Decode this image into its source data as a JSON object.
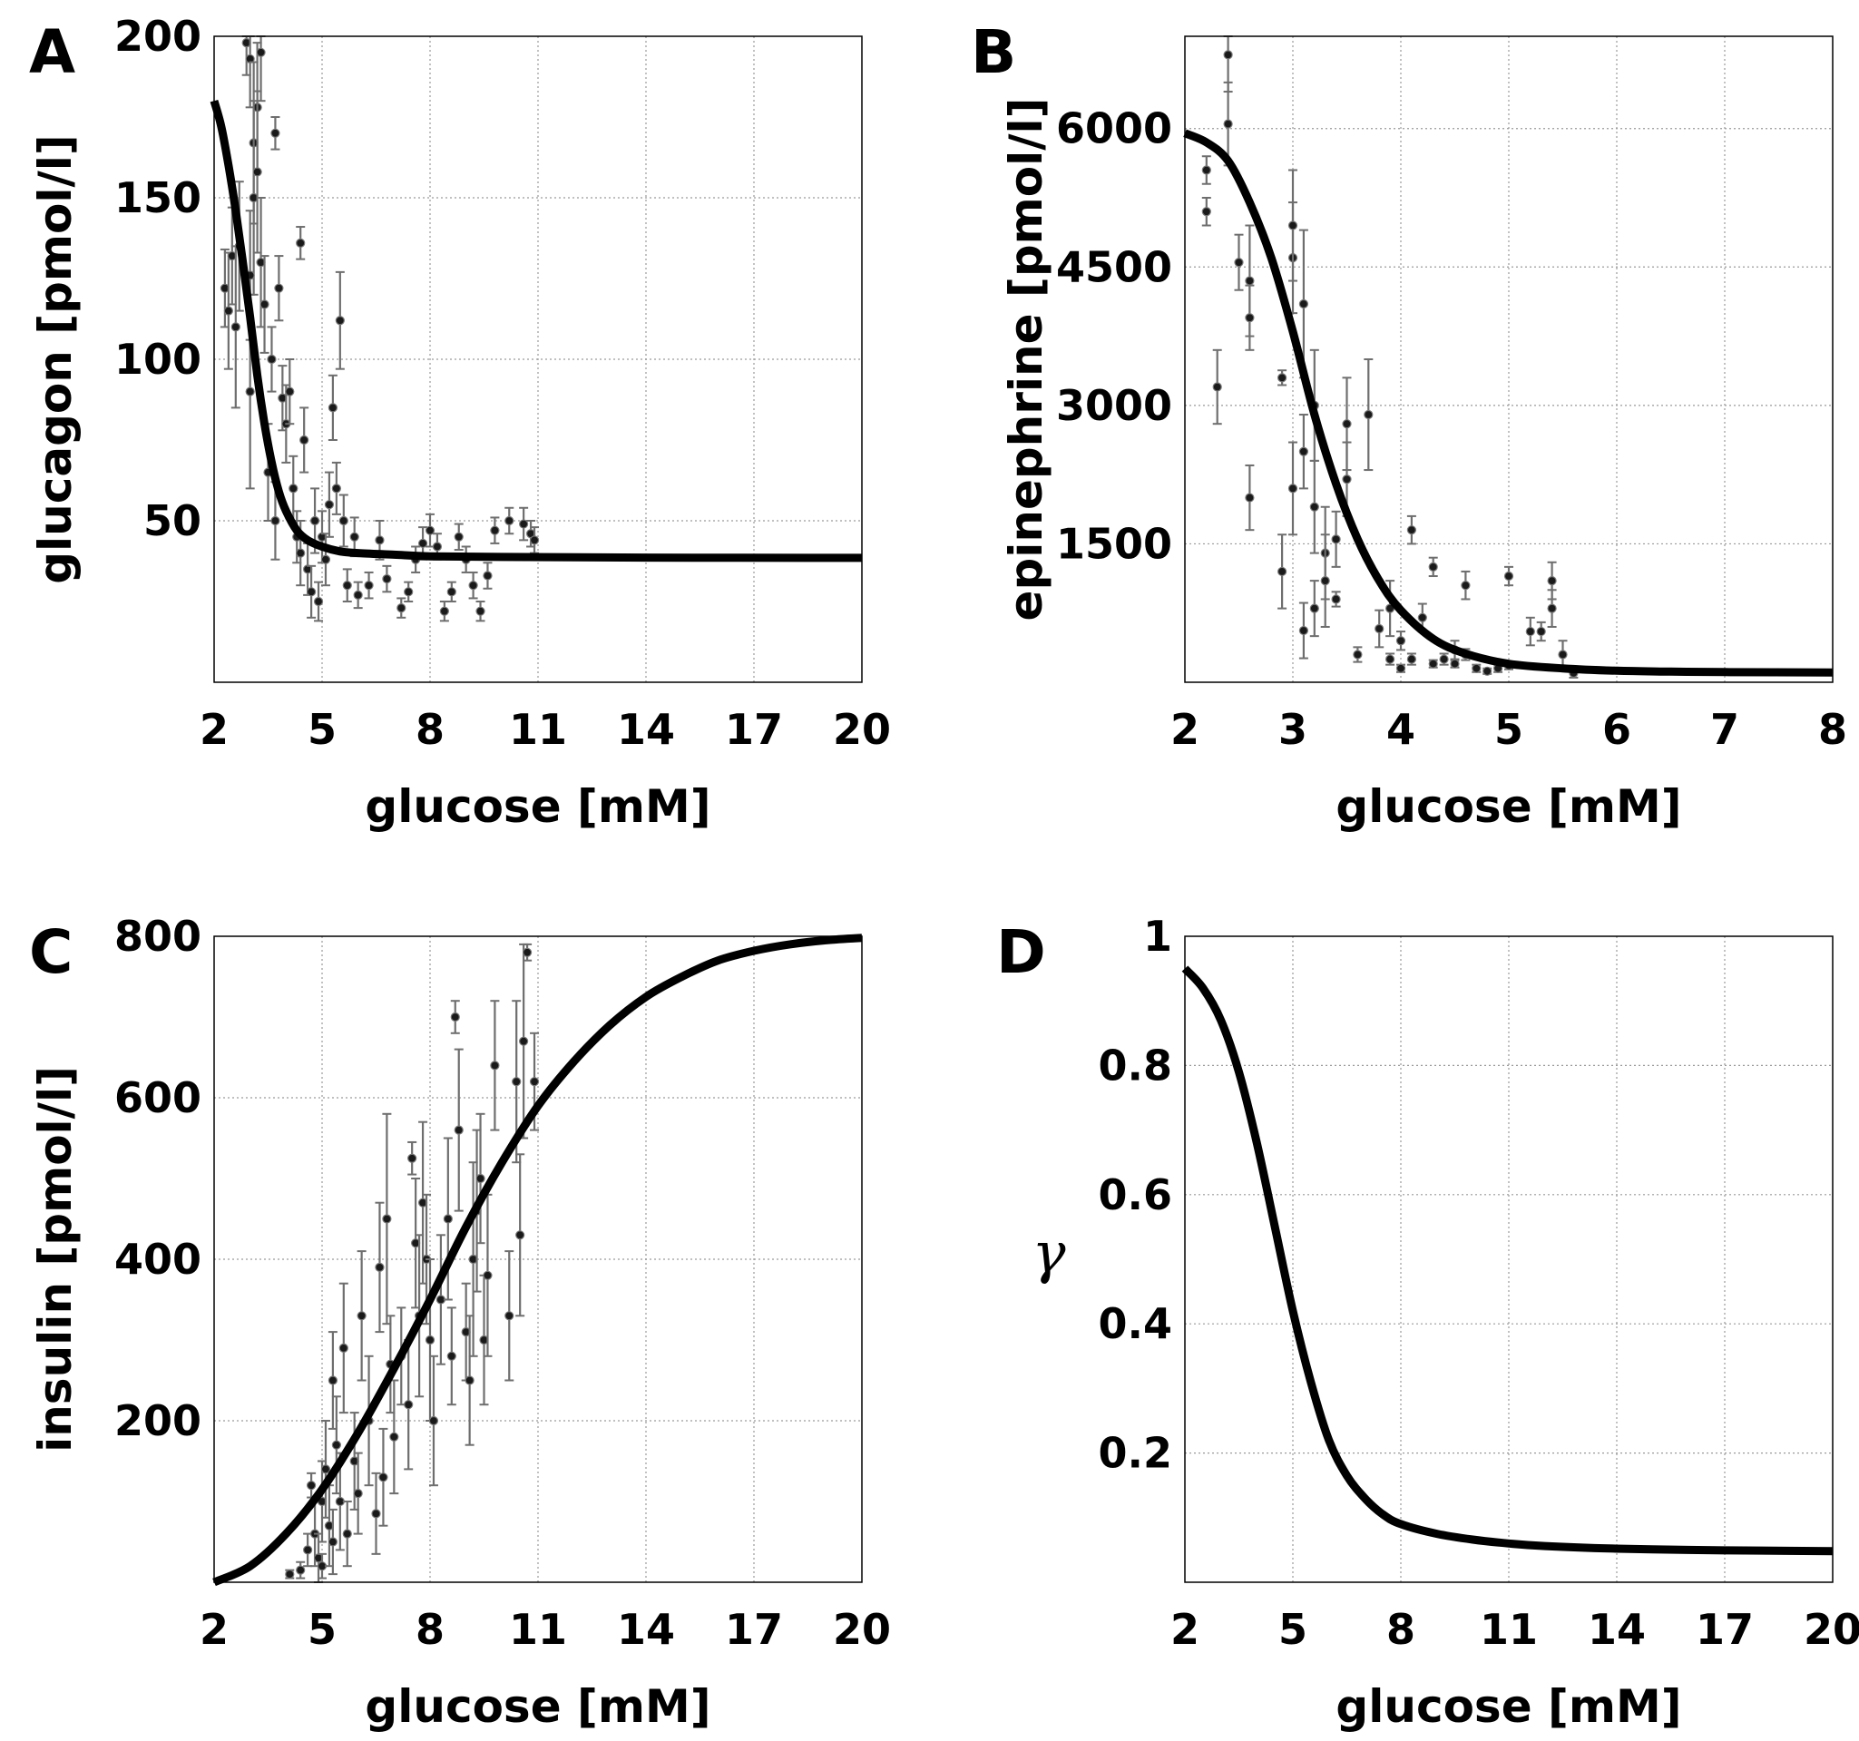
{
  "chart_data": [
    {
      "panel": "A",
      "type": "scatter",
      "xlabel": "glucose [mM]",
      "ylabel": "glucagon [pmol/l]",
      "xlim": [
        2,
        20
      ],
      "ylim": [
        0,
        200
      ],
      "xticks": [
        2,
        5,
        8,
        11,
        14,
        17,
        20
      ],
      "yticks": [
        50,
        100,
        150,
        200
      ],
      "xtick_labels": [
        "2",
        "5",
        "8",
        "11",
        "14",
        "17",
        "20"
      ],
      "ytick_labels": [
        "50",
        "100",
        "150",
        "200"
      ],
      "grid": true,
      "curve": {
        "x": [
          2.0,
          2.2,
          2.4,
          2.6,
          2.8,
          3.0,
          3.2,
          3.4,
          3.6,
          3.8,
          4.0,
          4.3,
          4.6,
          5.0,
          5.5,
          6.0,
          7.0,
          8.0,
          10.0,
          14.0,
          20.0
        ],
        "y": [
          180,
          172,
          160,
          146,
          130,
          113,
          95,
          80,
          68,
          59,
          53,
          47,
          44,
          42,
          40.5,
          40,
          39.5,
          39,
          38.8,
          38.6,
          38.5
        ]
      },
      "points": [
        {
          "x": 2.3,
          "y": 122,
          "err": 12
        },
        {
          "x": 2.4,
          "y": 115,
          "err": 18
        },
        {
          "x": 2.5,
          "y": 132,
          "err": 15
        },
        {
          "x": 2.6,
          "y": 110,
          "err": 25
        },
        {
          "x": 2.7,
          "y": 135,
          "err": 20
        },
        {
          "x": 2.9,
          "y": 198,
          "err": 10
        },
        {
          "x": 3.0,
          "y": 193,
          "err": 15
        },
        {
          "x": 3.1,
          "y": 167,
          "err": 25
        },
        {
          "x": 3.2,
          "y": 178,
          "err": 20
        },
        {
          "x": 3.3,
          "y": 195,
          "err": 15
        },
        {
          "x": 3.1,
          "y": 150,
          "err": 30
        },
        {
          "x": 3.0,
          "y": 126,
          "err": 20
        },
        {
          "x": 3.2,
          "y": 158,
          "err": 25
        },
        {
          "x": 3.3,
          "y": 130,
          "err": 20
        },
        {
          "x": 3.4,
          "y": 117,
          "err": 15
        },
        {
          "x": 3.0,
          "y": 90,
          "err": 30
        },
        {
          "x": 3.6,
          "y": 100,
          "err": 10
        },
        {
          "x": 3.7,
          "y": 170,
          "err": 5
        },
        {
          "x": 3.8,
          "y": 122,
          "err": 10
        },
        {
          "x": 3.9,
          "y": 88,
          "err": 10
        },
        {
          "x": 3.5,
          "y": 65,
          "err": 15
        },
        {
          "x": 3.7,
          "y": 50,
          "err": 12
        },
        {
          "x": 4.0,
          "y": 80,
          "err": 12
        },
        {
          "x": 4.1,
          "y": 90,
          "err": 10
        },
        {
          "x": 4.2,
          "y": 60,
          "err": 10
        },
        {
          "x": 4.3,
          "y": 45,
          "err": 8
        },
        {
          "x": 4.4,
          "y": 136,
          "err": 5
        },
        {
          "x": 4.5,
          "y": 75,
          "err": 10
        },
        {
          "x": 4.4,
          "y": 40,
          "err": 10
        },
        {
          "x": 4.6,
          "y": 35,
          "err": 8
        },
        {
          "x": 4.7,
          "y": 28,
          "err": 8
        },
        {
          "x": 4.8,
          "y": 50,
          "err": 10
        },
        {
          "x": 4.9,
          "y": 25,
          "err": 6
        },
        {
          "x": 5.0,
          "y": 45,
          "err": 8
        },
        {
          "x": 5.1,
          "y": 38,
          "err": 8
        },
        {
          "x": 5.2,
          "y": 55,
          "err": 10
        },
        {
          "x": 5.3,
          "y": 85,
          "err": 10
        },
        {
          "x": 5.4,
          "y": 60,
          "err": 8
        },
        {
          "x": 5.5,
          "y": 112,
          "err": 15
        },
        {
          "x": 5.6,
          "y": 50,
          "err": 8
        },
        {
          "x": 5.7,
          "y": 30,
          "err": 5
        },
        {
          "x": 5.9,
          "y": 45,
          "err": 6
        },
        {
          "x": 6.0,
          "y": 27,
          "err": 4
        },
        {
          "x": 6.3,
          "y": 30,
          "err": 4
        },
        {
          "x": 6.6,
          "y": 44,
          "err": 6
        },
        {
          "x": 6.8,
          "y": 32,
          "err": 4
        },
        {
          "x": 7.2,
          "y": 23,
          "err": 3
        },
        {
          "x": 7.4,
          "y": 28,
          "err": 3
        },
        {
          "x": 7.6,
          "y": 38,
          "err": 4
        },
        {
          "x": 7.8,
          "y": 43,
          "err": 5
        },
        {
          "x": 8.0,
          "y": 47,
          "err": 5
        },
        {
          "x": 8.2,
          "y": 42,
          "err": 4
        },
        {
          "x": 8.4,
          "y": 22,
          "err": 3
        },
        {
          "x": 8.6,
          "y": 28,
          "err": 3
        },
        {
          "x": 8.8,
          "y": 45,
          "err": 4
        },
        {
          "x": 9.0,
          "y": 38,
          "err": 4
        },
        {
          "x": 9.2,
          "y": 30,
          "err": 4
        },
        {
          "x": 9.4,
          "y": 22,
          "err": 3
        },
        {
          "x": 9.6,
          "y": 33,
          "err": 4
        },
        {
          "x": 9.8,
          "y": 47,
          "err": 4
        },
        {
          "x": 10.2,
          "y": 50,
          "err": 4
        },
        {
          "x": 10.6,
          "y": 49,
          "err": 5
        },
        {
          "x": 10.8,
          "y": 46,
          "err": 4
        },
        {
          "x": 10.9,
          "y": 44,
          "err": 4
        }
      ]
    },
    {
      "panel": "B",
      "type": "scatter",
      "xlabel": "glucose [mM]",
      "ylabel": "epinephrine [pmol/l]",
      "xlim": [
        2,
        8
      ],
      "ylim": [
        0,
        7000
      ],
      "xticks": [
        2,
        3,
        4,
        5,
        6,
        7,
        8
      ],
      "yticks": [
        1500,
        3000,
        4500,
        6000
      ],
      "xtick_labels": [
        "2",
        "3",
        "4",
        "5",
        "6",
        "7",
        "8"
      ],
      "ytick_labels": [
        "1500",
        "3000",
        "4500",
        "6000"
      ],
      "grid": true,
      "curve": {
        "x": [
          2.0,
          2.2,
          2.4,
          2.6,
          2.8,
          3.0,
          3.2,
          3.4,
          3.6,
          3.8,
          4.0,
          4.3,
          4.6,
          5.0,
          5.5,
          6.0,
          6.5,
          7.0,
          8.0
        ],
        "y": [
          5950,
          5850,
          5650,
          5200,
          4600,
          3800,
          2900,
          2150,
          1550,
          1100,
          780,
          470,
          310,
          200,
          150,
          125,
          115,
          110,
          105
        ]
      },
      "points": [
        {
          "x": 2.2,
          "y": 5550,
          "err": 150
        },
        {
          "x": 2.2,
          "y": 5100,
          "err": 150
        },
        {
          "x": 2.3,
          "y": 3200,
          "err": 400
        },
        {
          "x": 2.4,
          "y": 6800,
          "err": 400
        },
        {
          "x": 2.4,
          "y": 6050,
          "err": 450
        },
        {
          "x": 2.5,
          "y": 4550,
          "err": 300
        },
        {
          "x": 2.6,
          "y": 4350,
          "err": 600
        },
        {
          "x": 2.6,
          "y": 3950,
          "err": 350
        },
        {
          "x": 2.6,
          "y": 2000,
          "err": 350
        },
        {
          "x": 2.9,
          "y": 3300,
          "err": 80
        },
        {
          "x": 2.9,
          "y": 1200,
          "err": 400
        },
        {
          "x": 3.0,
          "y": 4600,
          "err": 600
        },
        {
          "x": 3.0,
          "y": 4950,
          "err": 600
        },
        {
          "x": 3.1,
          "y": 4100,
          "err": 800
        },
        {
          "x": 3.0,
          "y": 2100,
          "err": 500
        },
        {
          "x": 3.1,
          "y": 2500,
          "err": 400
        },
        {
          "x": 3.2,
          "y": 3000,
          "err": 600
        },
        {
          "x": 3.2,
          "y": 1900,
          "err": 500
        },
        {
          "x": 3.1,
          "y": 560,
          "err": 300
        },
        {
          "x": 3.2,
          "y": 800,
          "err": 300
        },
        {
          "x": 3.3,
          "y": 1400,
          "err": 500
        },
        {
          "x": 3.3,
          "y": 1100,
          "err": 500
        },
        {
          "x": 3.4,
          "y": 1550,
          "err": 300
        },
        {
          "x": 3.4,
          "y": 900,
          "err": 80
        },
        {
          "x": 3.5,
          "y": 2800,
          "err": 500
        },
        {
          "x": 3.5,
          "y": 2200,
          "err": 400
        },
        {
          "x": 3.6,
          "y": 300,
          "err": 80
        },
        {
          "x": 3.7,
          "y": 2900,
          "err": 600
        },
        {
          "x": 3.8,
          "y": 580,
          "err": 200
        },
        {
          "x": 3.9,
          "y": 800,
          "err": 300
        },
        {
          "x": 3.9,
          "y": 250,
          "err": 60
        },
        {
          "x": 4.0,
          "y": 450,
          "err": 100
        },
        {
          "x": 4.0,
          "y": 150,
          "err": 40
        },
        {
          "x": 4.1,
          "y": 1650,
          "err": 150
        },
        {
          "x": 4.1,
          "y": 250,
          "err": 60
        },
        {
          "x": 4.2,
          "y": 700,
          "err": 150
        },
        {
          "x": 4.3,
          "y": 1250,
          "err": 100
        },
        {
          "x": 4.3,
          "y": 200,
          "err": 40
        },
        {
          "x": 4.4,
          "y": 250,
          "err": 60
        },
        {
          "x": 4.5,
          "y": 350,
          "err": 100
        },
        {
          "x": 4.5,
          "y": 200,
          "err": 40
        },
        {
          "x": 4.6,
          "y": 300,
          "err": 60
        },
        {
          "x": 4.6,
          "y": 1050,
          "err": 150
        },
        {
          "x": 4.7,
          "y": 150,
          "err": 40
        },
        {
          "x": 4.8,
          "y": 120,
          "err": 30
        },
        {
          "x": 4.9,
          "y": 150,
          "err": 40
        },
        {
          "x": 5.0,
          "y": 1150,
          "err": 100
        },
        {
          "x": 5.0,
          "y": 180,
          "err": 40
        },
        {
          "x": 5.2,
          "y": 550,
          "err": 150
        },
        {
          "x": 5.3,
          "y": 550,
          "err": 100
        },
        {
          "x": 5.4,
          "y": 800,
          "err": 200
        },
        {
          "x": 5.4,
          "y": 1100,
          "err": 200
        },
        {
          "x": 5.5,
          "y": 300,
          "err": 150
        },
        {
          "x": 5.6,
          "y": 100,
          "err": 50
        }
      ]
    },
    {
      "panel": "C",
      "type": "scatter",
      "xlabel": "glucose [mM]",
      "ylabel": "insulin [pmol/l]",
      "xlim": [
        2,
        20
      ],
      "ylim": [
        0,
        800
      ],
      "xticks": [
        2,
        5,
        8,
        11,
        14,
        17,
        20
      ],
      "yticks": [
        200,
        400,
        600,
        800
      ],
      "xtick_labels": [
        "2",
        "5",
        "8",
        "11",
        "14",
        "17",
        "20"
      ],
      "ytick_labels": [
        "200",
        "400",
        "600",
        "800"
      ],
      "grid": true,
      "curve": {
        "x": [
          2,
          3,
          4,
          5,
          6,
          7,
          8,
          9,
          10,
          11,
          12,
          13,
          14,
          15,
          16,
          17,
          18,
          19,
          20
        ],
        "y": [
          0,
          20,
          60,
          115,
          185,
          265,
          350,
          440,
          520,
          590,
          645,
          690,
          725,
          750,
          770,
          782,
          790,
          795,
          798
        ]
      },
      "points": [
        {
          "x": 4.1,
          "y": 10,
          "err": 5
        },
        {
          "x": 4.4,
          "y": 15,
          "err": 10
        },
        {
          "x": 4.6,
          "y": 40,
          "err": 20
        },
        {
          "x": 4.7,
          "y": 120,
          "err": 15
        },
        {
          "x": 4.8,
          "y": 60,
          "err": 40
        },
        {
          "x": 4.9,
          "y": 30,
          "err": 30
        },
        {
          "x": 5.0,
          "y": 100,
          "err": 50
        },
        {
          "x": 5.0,
          "y": 20,
          "err": 15
        },
        {
          "x": 5.1,
          "y": 140,
          "err": 60
        },
        {
          "x": 5.2,
          "y": 70,
          "err": 50
        },
        {
          "x": 5.3,
          "y": 50,
          "err": 40
        },
        {
          "x": 5.3,
          "y": 250,
          "err": 60
        },
        {
          "x": 5.4,
          "y": 170,
          "err": 60
        },
        {
          "x": 5.5,
          "y": 100,
          "err": 60
        },
        {
          "x": 5.6,
          "y": 290,
          "err": 80
        },
        {
          "x": 5.7,
          "y": 60,
          "err": 40
        },
        {
          "x": 5.9,
          "y": 150,
          "err": 60
        },
        {
          "x": 6.0,
          "y": 110,
          "err": 50
        },
        {
          "x": 6.1,
          "y": 330,
          "err": 80
        },
        {
          "x": 6.3,
          "y": 200,
          "err": 80
        },
        {
          "x": 6.5,
          "y": 85,
          "err": 50
        },
        {
          "x": 6.6,
          "y": 390,
          "err": 80
        },
        {
          "x": 6.7,
          "y": 130,
          "err": 60
        },
        {
          "x": 6.8,
          "y": 450,
          "err": 130
        },
        {
          "x": 6.9,
          "y": 270,
          "err": 60
        },
        {
          "x": 7.0,
          "y": 180,
          "err": 70
        },
        {
          "x": 7.2,
          "y": 280,
          "err": 60
        },
        {
          "x": 7.4,
          "y": 220,
          "err": 80
        },
        {
          "x": 7.5,
          "y": 525,
          "err": 20
        },
        {
          "x": 7.6,
          "y": 420,
          "err": 80
        },
        {
          "x": 7.7,
          "y": 330,
          "err": 100
        },
        {
          "x": 7.8,
          "y": 470,
          "err": 100
        },
        {
          "x": 7.9,
          "y": 400,
          "err": 80
        },
        {
          "x": 8.0,
          "y": 300,
          "err": 100
        },
        {
          "x": 8.1,
          "y": 200,
          "err": 80
        },
        {
          "x": 8.3,
          "y": 350,
          "err": 80
        },
        {
          "x": 8.5,
          "y": 450,
          "err": 100
        },
        {
          "x": 8.6,
          "y": 280,
          "err": 60
        },
        {
          "x": 8.7,
          "y": 700,
          "err": 20
        },
        {
          "x": 8.8,
          "y": 560,
          "err": 100
        },
        {
          "x": 9.0,
          "y": 310,
          "err": 60
        },
        {
          "x": 9.1,
          "y": 250,
          "err": 80
        },
        {
          "x": 9.2,
          "y": 400,
          "err": 120
        },
        {
          "x": 9.3,
          "y": 460,
          "err": 100
        },
        {
          "x": 9.4,
          "y": 500,
          "err": 80
        },
        {
          "x": 9.5,
          "y": 300,
          "err": 80
        },
        {
          "x": 9.6,
          "y": 380,
          "err": 100
        },
        {
          "x": 9.8,
          "y": 640,
          "err": 80
        },
        {
          "x": 10.2,
          "y": 330,
          "err": 80
        },
        {
          "x": 10.4,
          "y": 620,
          "err": 100
        },
        {
          "x": 10.5,
          "y": 430,
          "err": 100
        },
        {
          "x": 10.6,
          "y": 670,
          "err": 120
        },
        {
          "x": 10.7,
          "y": 780,
          "err": 10
        },
        {
          "x": 10.9,
          "y": 620,
          "err": 60
        }
      ]
    },
    {
      "panel": "D",
      "type": "line",
      "xlabel": "glucose [mM]",
      "ylabel": "γ",
      "xlim": [
        2,
        20
      ],
      "ylim": [
        0,
        1
      ],
      "xticks": [
        2,
        5,
        8,
        11,
        14,
        17,
        20
      ],
      "yticks": [
        0.2,
        0.4,
        0.6,
        0.8,
        1
      ],
      "xtick_labels": [
        "2",
        "5",
        "8",
        "11",
        "14",
        "17",
        "20"
      ],
      "ytick_labels": [
        "0.2",
        "0.4",
        "0.6",
        "0.8",
        "1"
      ],
      "grid": true,
      "curve": {
        "x": [
          2.0,
          2.5,
          3.0,
          3.5,
          4.0,
          4.5,
          5.0,
          5.5,
          6.0,
          6.5,
          7.0,
          7.5,
          8.0,
          9.0,
          10.0,
          11.0,
          12.0,
          14.0,
          16.0,
          18.0,
          20.0
        ],
        "y": [
          0.95,
          0.92,
          0.87,
          0.79,
          0.68,
          0.55,
          0.42,
          0.31,
          0.22,
          0.165,
          0.13,
          0.105,
          0.09,
          0.075,
          0.066,
          0.06,
          0.056,
          0.052,
          0.05,
          0.049,
          0.048
        ]
      }
    }
  ]
}
